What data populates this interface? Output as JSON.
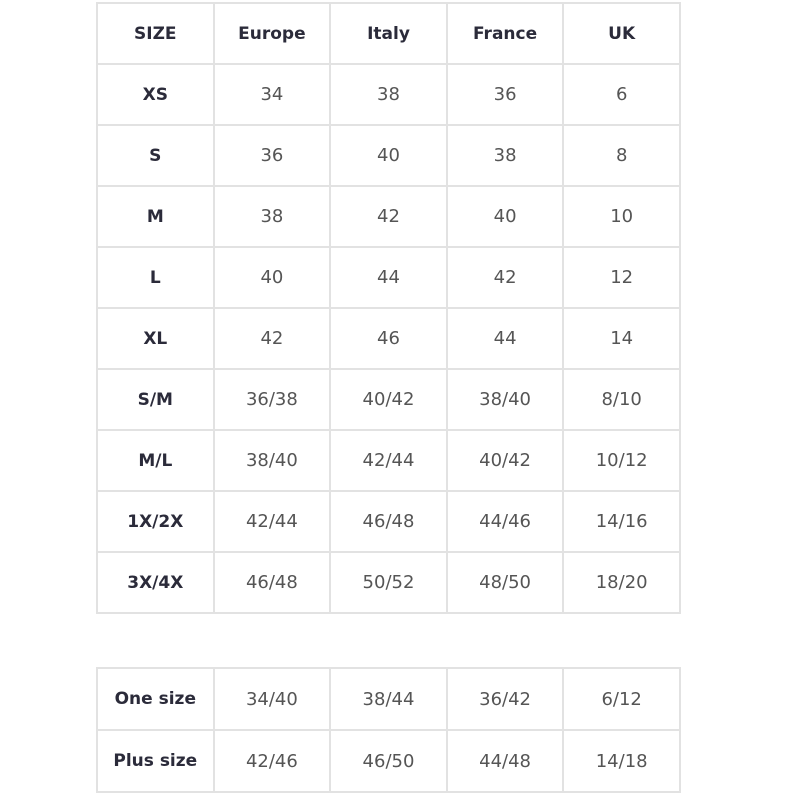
{
  "size_table": {
    "headers": [
      "SIZE",
      "Europe",
      "Italy",
      "France",
      "UK"
    ],
    "rows": [
      [
        "XS",
        "34",
        "38",
        "36",
        "6"
      ],
      [
        "S",
        "36",
        "40",
        "38",
        "8"
      ],
      [
        "M",
        "38",
        "42",
        "40",
        "10"
      ],
      [
        "L",
        "40",
        "44",
        "42",
        "12"
      ],
      [
        "XL",
        "42",
        "46",
        "44",
        "14"
      ],
      [
        "S/M",
        "36/38",
        "40/42",
        "38/40",
        "8/10"
      ],
      [
        "M/L",
        "38/40",
        "42/44",
        "40/42",
        "10/12"
      ],
      [
        "1X/2X",
        "42/44",
        "46/48",
        "44/46",
        "14/16"
      ],
      [
        "3X/4X",
        "46/48",
        "50/52",
        "48/50",
        "18/20"
      ]
    ]
  },
  "special_table": {
    "rows": [
      [
        "One size",
        "34/40",
        "38/44",
        "36/42",
        "6/12"
      ],
      [
        "Plus size",
        "42/46",
        "46/50",
        "44/48",
        "14/18"
      ]
    ]
  }
}
